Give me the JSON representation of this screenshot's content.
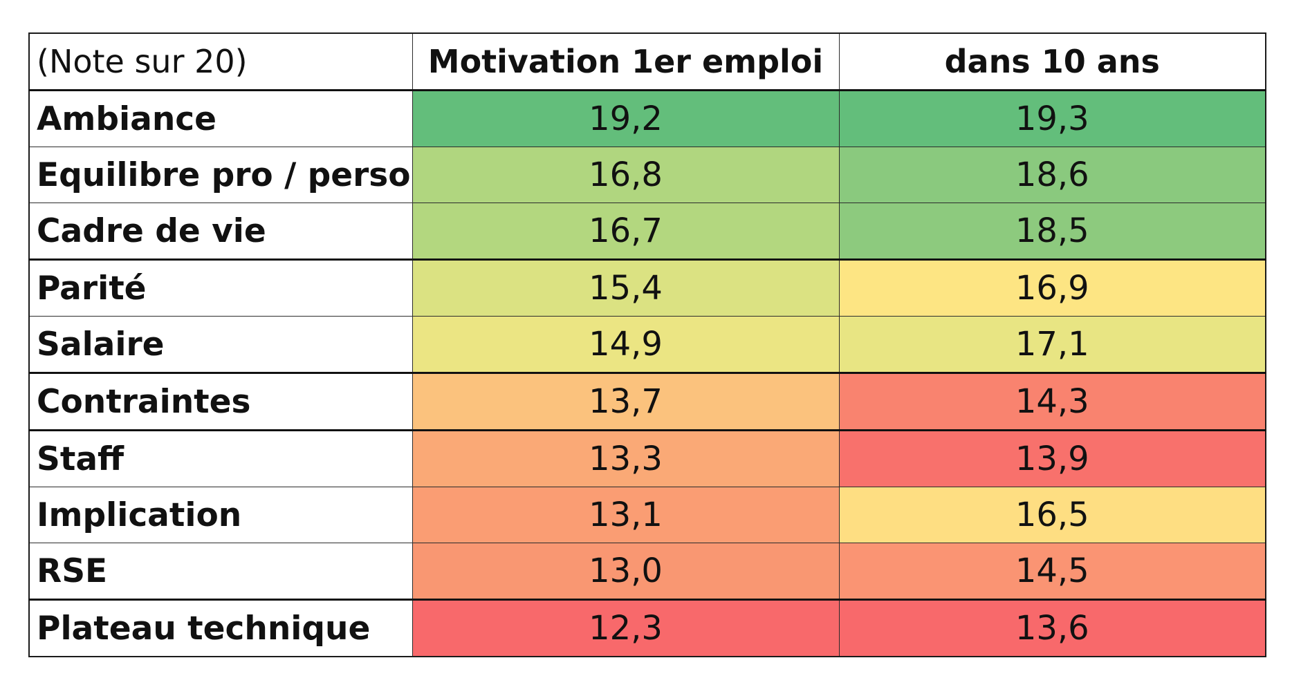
{
  "chart_data": {
    "type": "heatmap",
    "corner_label": "(Note sur 20)",
    "columns": [
      "Motivation 1er emploi",
      "dans 10 ans"
    ],
    "rows": [
      {
        "label": "Ambiance",
        "values": [
          "19,2",
          "19,3"
        ],
        "colors": [
          "#63be7b",
          "#63be7b"
        ]
      },
      {
        "label": "Equilibre pro / perso",
        "values": [
          "16,8",
          "18,6"
        ],
        "colors": [
          "#b0d67f",
          "#8ac97e"
        ]
      },
      {
        "label": "Cadre de vie",
        "values": [
          "16,7",
          "18,5"
        ],
        "colors": [
          "#b3d77f",
          "#8dca7e"
        ]
      },
      {
        "label": "Parité",
        "values": [
          "15,4",
          "16,9"
        ],
        "colors": [
          "#dbe282",
          "#fde583"
        ]
      },
      {
        "label": "Salaire",
        "values": [
          "14,9",
          "17,1"
        ],
        "colors": [
          "#ebe583",
          "#e8e583"
        ]
      },
      {
        "label": "Contraintes",
        "values": [
          "13,7",
          "14,3"
        ],
        "colors": [
          "#fbc27d",
          "#f9836f"
        ]
      },
      {
        "label": "Staff",
        "values": [
          "13,3",
          "13,9"
        ],
        "colors": [
          "#faa976",
          "#f8716c"
        ]
      },
      {
        "label": "Implication",
        "values": [
          "13,1",
          "16,5"
        ],
        "colors": [
          "#fa9d73",
          "#fede82"
        ]
      },
      {
        "label": "RSE",
        "values": [
          "13,0",
          "14,5"
        ],
        "colors": [
          "#f99772",
          "#fa9473"
        ]
      },
      {
        "label": "Plateau technique",
        "values": [
          "12,3",
          "13,6"
        ],
        "colors": [
          "#f8696b",
          "#f8696b"
        ]
      }
    ],
    "scale": {
      "low_color": "#f8696b",
      "mid_color": "#ffeb84",
      "high_color": "#63be7b"
    },
    "group_breaks_after_rows": [
      2,
      4,
      5,
      8
    ]
  }
}
